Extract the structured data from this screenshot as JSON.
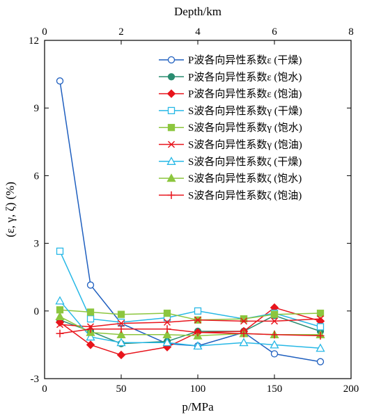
{
  "chart_data": {
    "type": "line",
    "title": "",
    "xlabel": "p/MPa",
    "ylabel": "(ε, γ, ζ) (%)",
    "x2label": "Depth/km",
    "xlim": [
      0,
      200
    ],
    "ylim": [
      -3,
      12
    ],
    "x2lim": [
      0,
      8
    ],
    "xticks": [
      0,
      50,
      100,
      150,
      200
    ],
    "yticks": [
      -3,
      0,
      3,
      6,
      9,
      12
    ],
    "x2ticks": [
      0,
      2,
      4,
      6,
      8
    ],
    "grid": false,
    "legend_position": "top-right",
    "x": [
      10,
      30,
      50,
      80,
      100,
      130,
      150,
      180
    ],
    "series": [
      {
        "name": "P波各向异性系数ε (干燥)",
        "color": "#1f5fbf",
        "marker": "circle-open",
        "values": [
          10.2,
          1.15,
          -0.55,
          -1.45,
          -1.55,
          -0.95,
          -1.9,
          -2.25
        ]
      },
      {
        "name": "P波各向异性系数ε (饱水)",
        "color": "#2a8c70",
        "marker": "circle-filled",
        "values": [
          -0.4,
          -0.9,
          -1.45,
          -1.35,
          -0.9,
          -0.9,
          -0.2,
          -0.9
        ]
      },
      {
        "name": "P波各向异性系数ε (饱油)",
        "color": "#e8141c",
        "marker": "diamond-filled",
        "values": [
          -0.5,
          -1.5,
          -1.95,
          -1.6,
          -0.95,
          -0.9,
          0.15,
          -0.45
        ]
      },
      {
        "name": "S波各向异性系数γ (干燥)",
        "color": "#27b8e6",
        "marker": "square-open",
        "values": [
          2.65,
          -0.35,
          -0.5,
          -0.3,
          0.0,
          -0.35,
          -0.1,
          -0.7
        ]
      },
      {
        "name": "S波各向异性系数γ (饱水)",
        "color": "#8cc63e",
        "marker": "square-filled",
        "values": [
          0.05,
          -0.05,
          -0.15,
          -0.1,
          -0.4,
          -0.35,
          -0.15,
          -0.1
        ]
      },
      {
        "name": "S波各向异性系数γ (饱油)",
        "color": "#e8141c",
        "marker": "x",
        "values": [
          -0.6,
          -0.7,
          -0.55,
          -0.5,
          -0.4,
          -0.45,
          -0.45,
          -0.35
        ]
      },
      {
        "name": "S波各向异性系数ζ (干燥)",
        "color": "#27b8e6",
        "marker": "triangle-open",
        "values": [
          0.45,
          -1.15,
          -1.4,
          -1.4,
          -1.55,
          -1.4,
          -1.5,
          -1.65
        ]
      },
      {
        "name": "S波各向异性系数ζ (饱水)",
        "color": "#8cc63e",
        "marker": "triangle-filled",
        "values": [
          -0.25,
          -0.95,
          -1.05,
          -1.05,
          -1.1,
          -1.0,
          -1.05,
          -1.05
        ]
      },
      {
        "name": "S波各向异性系数ζ (饱油)",
        "color": "#e8141c",
        "marker": "plus",
        "values": [
          -1.0,
          -0.8,
          -0.8,
          -0.8,
          -0.95,
          -1.0,
          -1.05,
          -1.1
        ]
      }
    ]
  }
}
